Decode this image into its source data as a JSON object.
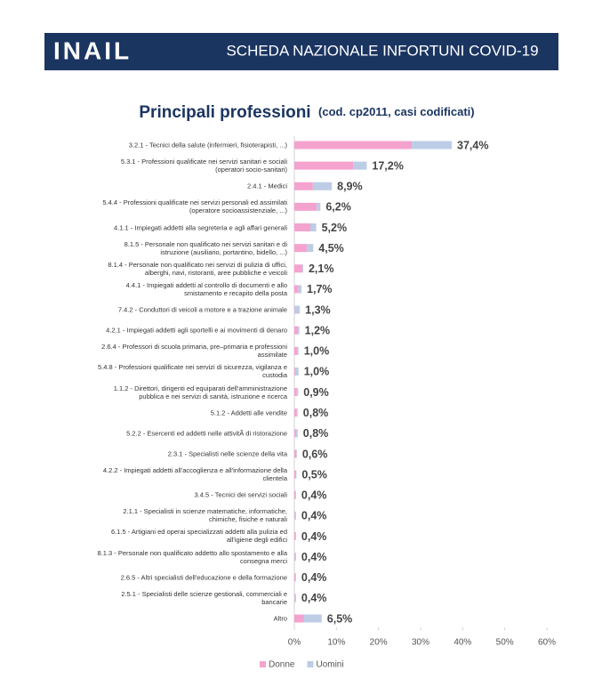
{
  "header": {
    "logo": "INAIL",
    "title": "SCHEDA NAZIONALE INFORTUNI COVID-19"
  },
  "chart_data": {
    "type": "stacked-bar-horizontal",
    "title": "Principali professioni",
    "subtitle": "(cod. cp2011, casi codificati)",
    "categories": [
      "3.2.1 - Tecnici della salute (infermieri, fisioterapisti, ...)",
      "5.3.1 - Professioni qualificate nei servizi sanitari e sociali (operatori socio-sanitari)",
      "2.4.1 - Medici",
      "5.4.4 - Professioni qualificate nei servizi personali ed assimilati (operatore socioassistenziale, ...)",
      "4.1.1 - Impiegati addetti alla segreteria e agli affari generali",
      "8.1.5 - Personale non qualificato nei servizi sanitari e di istruzione (ausiliario, portantino, bidello, ...)",
      "8.1.4 - Personale non qualificato nei servizi di pulizia di uffici, alberghi, navi, ristoranti, aree pubbliche e veicoli",
      "4.4.1 - Impiegati addetti al controllo di documenti e allo smistamento e recapito della posta",
      "7.4.2 - Conduttori di veicoli a motore e a trazione animale",
      "4.2.1 - Impiegati addetti agli sportelli e ai movimenti di denaro",
      "2.6.4 - Professori di scuola primaria, pre–primaria e professioni assimilate",
      "5.4.8 - Professioni qualificate nei servizi di sicurezza, vigilanza e custodia",
      "1.1.2 - Direttori, dirigenti ed equiparati dell'amministrazione pubblica e nei servizi di sanità, istruzione e ricerca",
      "5.1.2 - Addetti alle vendite",
      "5.2.2 - Esercenti ed addetti nelle attivitÃ  di ristorazione",
      "2.3.1 - Specialisti nelle scienze della vita",
      "4.2.2 - Impiegati addetti all'accoglienza e all'informazione della clientela",
      "3.4.5 - Tecnici dei servizi sociali",
      "2.1.1 - Specialisti in scienze matematiche, informatiche, chimiche, fisiche e naturali",
      "6.1.5 - Artigiani ed operai specializzati addetti alla pulizia ed all'igiene degli edifici",
      "8.1.3 - Personale non qualificato addetto allo spostamento e alla consegna merci",
      "2.6.5 - Altri specialisti dell'educazione e della formazione",
      "2.5.1 - Specialisti delle scienze gestionali, commerciali e bancarie",
      "Altro"
    ],
    "series": [
      {
        "name": "Donne",
        "color": "#f4a3cf",
        "values": [
          27.9,
          14.0,
          4.4,
          5.3,
          3.8,
          3.0,
          1.9,
          1.0,
          0.1,
          0.9,
          0.8,
          0.2,
          0.6,
          0.6,
          0.4,
          0.5,
          0.4,
          0.3,
          0.1,
          0.3,
          0.1,
          0.3,
          0.1,
          2.3
        ]
      },
      {
        "name": "Uomini",
        "color": "#bccde5",
        "values": [
          9.5,
          3.2,
          4.5,
          0.9,
          1.4,
          1.5,
          0.2,
          0.7,
          1.2,
          0.3,
          0.2,
          0.8,
          0.3,
          0.2,
          0.4,
          0.1,
          0.1,
          0.1,
          0.3,
          0.1,
          0.3,
          0.1,
          0.3,
          4.2
        ]
      }
    ],
    "totals": [
      37.4,
      17.2,
      8.9,
      6.2,
      5.2,
      4.5,
      2.1,
      1.7,
      1.3,
      1.2,
      1.0,
      1.0,
      0.9,
      0.8,
      0.8,
      0.6,
      0.5,
      0.4,
      0.4,
      0.4,
      0.4,
      0.4,
      0.4,
      6.5
    ],
    "total_labels": [
      "37,4%",
      "17,2%",
      "8,9%",
      "6,2%",
      "5,2%",
      "4,5%",
      "2,1%",
      "1,7%",
      "1,3%",
      "1,2%",
      "1,0%",
      "1,0%",
      "0,9%",
      "0,8%",
      "0,8%",
      "0,6%",
      "0,5%",
      "0,4%",
      "0,4%",
      "0,4%",
      "0,4%",
      "0,4%",
      "0,4%",
      "6,5%"
    ],
    "xlim": [
      0,
      60
    ],
    "xticks": [
      {
        "value": 0,
        "label": "0%"
      },
      {
        "value": 10,
        "label": "10%"
      },
      {
        "value": 20,
        "label": "20%"
      },
      {
        "value": 30,
        "label": "30%"
      },
      {
        "value": 40,
        "label": "40%"
      },
      {
        "value": 50,
        "label": "50%"
      },
      {
        "value": 60,
        "label": "60%"
      }
    ],
    "legend": "bottom"
  }
}
